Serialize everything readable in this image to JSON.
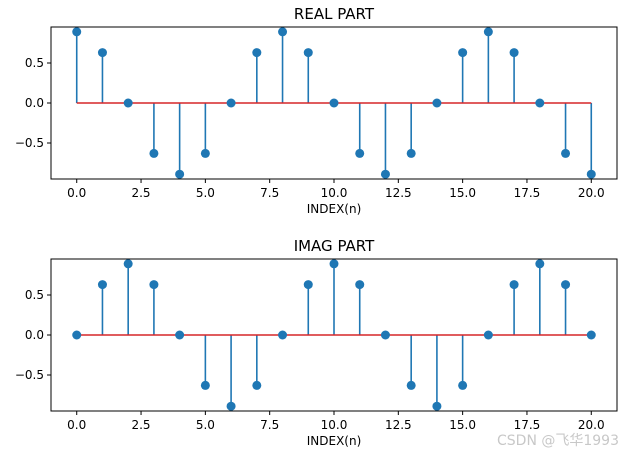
{
  "watermark": "CSDN @飞华1993",
  "colors": {
    "stem": "#1f77b4",
    "baseline": "#d62728",
    "axes": "#000000"
  },
  "chart_data": [
    {
      "type": "stem",
      "title": "REAL PART",
      "xlabel": "INDEX(n)",
      "ylabel": "",
      "xlim": [
        -1,
        21
      ],
      "ylim": [
        -0.95,
        0.95
      ],
      "xticks": [
        "0.0",
        "2.5",
        "5.0",
        "7.5",
        "10.0",
        "12.5",
        "15.0",
        "17.5",
        "20.0"
      ],
      "xtick_values": [
        0,
        2.5,
        5,
        7.5,
        10,
        12.5,
        15,
        17.5,
        20
      ],
      "yticks": [
        "−0.5",
        "0.0",
        "0.5"
      ],
      "ytick_values": [
        -0.5,
        0,
        0.5
      ],
      "x": [
        0,
        1,
        2,
        3,
        4,
        5,
        6,
        7,
        8,
        9,
        10,
        11,
        12,
        13,
        14,
        15,
        16,
        17,
        18,
        19,
        20
      ],
      "values": [
        0.89,
        0.63,
        0,
        -0.63,
        -0.89,
        -0.63,
        0,
        0.63,
        0.89,
        0.63,
        0,
        -0.63,
        -0.89,
        -0.63,
        0,
        0.63,
        0.89,
        0.63,
        0,
        -0.63,
        -0.89
      ]
    },
    {
      "type": "stem",
      "title": "IMAG PART",
      "xlabel": "INDEX(n)",
      "ylabel": "",
      "xlim": [
        -1,
        21
      ],
      "ylim": [
        -0.95,
        0.95
      ],
      "xticks": [
        "0.0",
        "2.5",
        "5.0",
        "7.5",
        "10.0",
        "12.5",
        "15.0",
        "17.5",
        "20.0"
      ],
      "xtick_values": [
        0,
        2.5,
        5,
        7.5,
        10,
        12.5,
        15,
        17.5,
        20
      ],
      "yticks": [
        "−0.5",
        "0.0",
        "0.5"
      ],
      "ytick_values": [
        -0.5,
        0,
        0.5
      ],
      "x": [
        0,
        1,
        2,
        3,
        4,
        5,
        6,
        7,
        8,
        9,
        10,
        11,
        12,
        13,
        14,
        15,
        16,
        17,
        18,
        19,
        20
      ],
      "values": [
        0,
        0.63,
        0.89,
        0.63,
        0,
        -0.63,
        -0.89,
        -0.63,
        0,
        0.63,
        0.89,
        0.63,
        0,
        -0.63,
        -0.89,
        -0.63,
        0,
        0.63,
        0.89,
        0.63,
        0
      ]
    }
  ]
}
